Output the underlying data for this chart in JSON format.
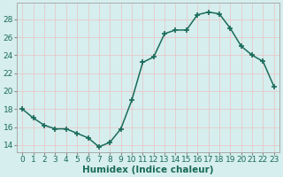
{
  "x": [
    0,
    1,
    2,
    3,
    4,
    5,
    6,
    7,
    8,
    9,
    10,
    11,
    12,
    13,
    14,
    15,
    16,
    17,
    18,
    19,
    20,
    21,
    22,
    23
  ],
  "y": [
    18.0,
    17.0,
    16.2,
    15.8,
    15.8,
    15.3,
    14.8,
    13.8,
    14.3,
    15.8,
    19.0,
    23.2,
    23.8,
    26.4,
    26.8,
    26.8,
    28.5,
    28.8,
    28.6,
    27.0,
    25.0,
    24.0,
    23.3,
    20.5
  ],
  "line_color": "#1a6b5a",
  "marker": "+",
  "markersize": 5,
  "markeredgewidth": 1.2,
  "linewidth": 1.1,
  "bg_color": "#d6eeee",
  "grid_color": "#c8dede",
  "xlabel": "Humidex (Indice chaleur)",
  "xlabel_fontsize": 7.5,
  "ylabel_ticks": [
    14,
    16,
    18,
    20,
    22,
    24,
    26,
    28
  ],
  "xlim": [
    -0.5,
    23.5
  ],
  "ylim": [
    13.2,
    29.8
  ],
  "xticks": [
    0,
    1,
    2,
    3,
    4,
    5,
    6,
    7,
    8,
    9,
    10,
    11,
    12,
    13,
    14,
    15,
    16,
    17,
    18,
    19,
    20,
    21,
    22,
    23
  ],
  "tick_fontsize": 6.5,
  "tick_color": "#1a6b5a",
  "axis_color": "#888888",
  "spine_color": "#aaaaaa"
}
